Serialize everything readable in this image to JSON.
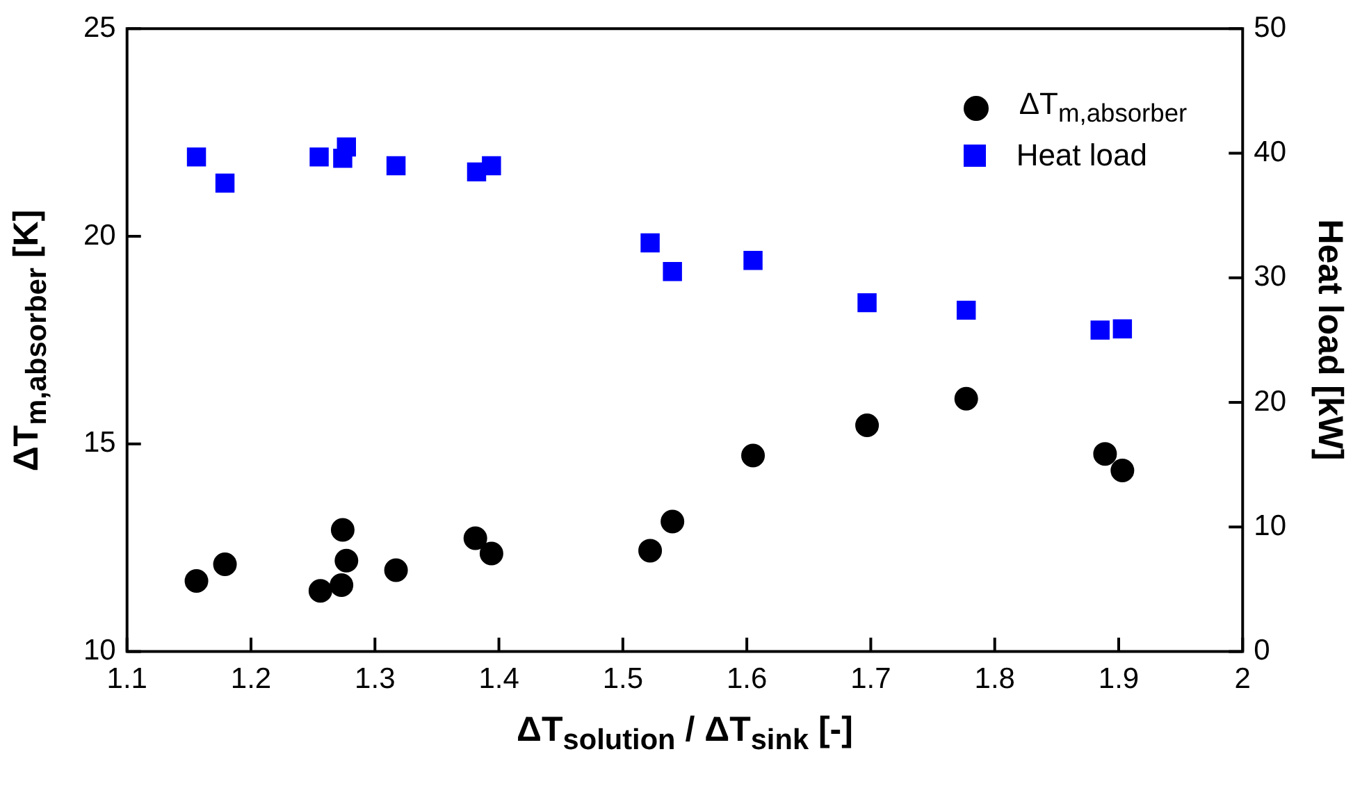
{
  "chart_data": {
    "type": "scatter",
    "xlabel": "ΔT$_{solution}$ / ΔT$_{sink}$ [-]",
    "ylabel": "ΔT$_{m,absorber}$ [K]",
    "y2label": "Heat load [kW]",
    "xlim": [
      1.1,
      2
    ],
    "xticks": [
      1.1,
      1.2,
      1.3,
      1.4,
      1.5,
      1.6,
      1.7,
      1.8,
      1.9,
      2
    ],
    "ylim": [
      10,
      25
    ],
    "yticks": [
      10,
      15,
      20,
      25
    ],
    "y2lim": [
      0,
      50
    ],
    "y2ticks": [
      0,
      10,
      20,
      30,
      40,
      50
    ],
    "grid": false,
    "legend": "top right",
    "series": [
      {
        "name": "ΔT$_{m,absorber}$",
        "color": "#000000",
        "marker": "circle",
        "x": [
          1.156,
          1.179,
          1.256,
          1.273,
          1.277,
          1.274,
          1.317,
          1.381,
          1.394,
          1.522,
          1.54,
          1.605,
          1.697,
          1.777,
          1.889,
          1.903
        ],
        "values": [
          11.7,
          12.1,
          11.46,
          11.6,
          12.19,
          12.93,
          11.96,
          12.73,
          12.36,
          12.43,
          13.13,
          14.72,
          15.45,
          16.09,
          14.76,
          14.36
        ]
      },
      {
        "name": "Heat load",
        "color": "#0000ff",
        "marker": "square",
        "axis": "y2",
        "x": [
          1.156,
          1.179,
          1.255,
          1.274,
          1.277,
          1.317,
          1.382,
          1.394,
          1.522,
          1.54,
          1.605,
          1.697,
          1.777,
          1.885,
          1.903
        ],
        "values": [
          39.7,
          37.6,
          39.7,
          39.6,
          40.5,
          39.0,
          38.5,
          39.0,
          32.8,
          30.5,
          31.4,
          28.0,
          27.4,
          25.8,
          25.9
        ]
      }
    ]
  }
}
